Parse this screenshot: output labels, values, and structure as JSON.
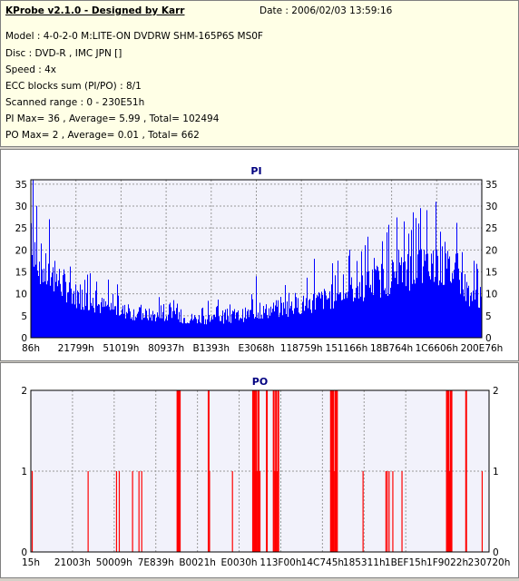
{
  "header": {
    "title": "KProbe v2.1.0 - Designed by Karr",
    "date": "Date : 2006/02/03 13:59:16",
    "lines": [
      "Model : 4-0-2-0 M:LITE-ON DVDRW SHM-165P6S MS0F",
      "Disc : DVD-R , IMC JPN []",
      "Speed : 4x",
      "ECC blocks sum (PI/PO) : 8/1",
      "Scanned range : 0 - 230E51h",
      "PI Max= 36 , Average= 5.99 , Total= 102494",
      "PO Max= 2 , Average= 0.01 , Total= 662"
    ]
  },
  "colors": {
    "pi_fill": "#0000ff",
    "po_bar": "#ff0000",
    "plot_bg": "#f2f2fb",
    "panel_bg": "#ffffff"
  },
  "chart_data": [
    {
      "type": "area",
      "title": "PI",
      "ylim": [
        0,
        36
      ],
      "yticks": [
        0,
        5,
        10,
        15,
        20,
        25,
        30,
        35
      ],
      "xticks": [
        "86h",
        "21799h",
        "51019h",
        "80937h",
        "B1393h",
        "E3068h",
        "118759h",
        "151166h",
        "18B764h",
        "1C6606h",
        "200E76h"
      ],
      "grid": true,
      "profile": [
        [
          0.0,
          30
        ],
        [
          0.01,
          22
        ],
        [
          0.03,
          17
        ],
        [
          0.06,
          15
        ],
        [
          0.1,
          11
        ],
        [
          0.15,
          8.5
        ],
        [
          0.2,
          7
        ],
        [
          0.25,
          6
        ],
        [
          0.3,
          5.5
        ],
        [
          0.35,
          5
        ],
        [
          0.4,
          5
        ],
        [
          0.45,
          5.5
        ],
        [
          0.5,
          6.5
        ],
        [
          0.55,
          7.5
        ],
        [
          0.6,
          8.5
        ],
        [
          0.65,
          10
        ],
        [
          0.7,
          12
        ],
        [
          0.75,
          14
        ],
        [
          0.8,
          16
        ],
        [
          0.85,
          18
        ],
        [
          0.9,
          19
        ],
        [
          0.94,
          17
        ],
        [
          0.97,
          12
        ],
        [
          1.0,
          10
        ]
      ],
      "peaks": [
        [
          0.004,
          36
        ],
        [
          0.9,
          31
        ],
        [
          0.5,
          14
        ],
        [
          0.63,
          18
        ],
        [
          0.79,
          24
        ],
        [
          0.86,
          26
        ]
      ]
    },
    {
      "type": "bar",
      "title": "PO",
      "ylim": [
        0,
        2
      ],
      "yticks": [
        0,
        1,
        2
      ],
      "xticks": [
        "15h",
        "21003h",
        "50009h",
        "7E839h",
        "B0021h",
        "E0030h",
        "113F00h",
        "14C745h",
        "185311h",
        "1BEF15h",
        "1F9022h",
        "230720h"
      ],
      "grid": true,
      "events": [
        [
          0.003,
          1
        ],
        [
          0.125,
          1
        ],
        [
          0.187,
          1
        ],
        [
          0.193,
          1
        ],
        [
          0.222,
          1
        ],
        [
          0.236,
          1
        ],
        [
          0.242,
          1
        ],
        [
          0.32,
          2
        ],
        [
          0.322,
          2
        ],
        [
          0.325,
          2
        ],
        [
          0.388,
          2
        ],
        [
          0.39,
          1
        ],
        [
          0.44,
          1
        ],
        [
          0.485,
          2
        ],
        [
          0.488,
          2
        ],
        [
          0.49,
          1
        ],
        [
          0.492,
          2
        ],
        [
          0.495,
          1
        ],
        [
          0.497,
          2
        ],
        [
          0.5,
          1
        ],
        [
          0.515,
          2
        ],
        [
          0.53,
          2
        ],
        [
          0.533,
          1
        ],
        [
          0.535,
          2
        ],
        [
          0.538,
          1
        ],
        [
          0.54,
          2
        ],
        [
          0.655,
          2
        ],
        [
          0.658,
          2
        ],
        [
          0.66,
          2
        ],
        [
          0.662,
          1
        ],
        [
          0.665,
          2
        ],
        [
          0.668,
          2
        ],
        [
          0.725,
          1
        ],
        [
          0.775,
          1
        ],
        [
          0.778,
          1
        ],
        [
          0.782,
          1
        ],
        [
          0.79,
          1
        ],
        [
          0.81,
          1
        ],
        [
          0.908,
          2
        ],
        [
          0.911,
          2
        ],
        [
          0.914,
          1
        ],
        [
          0.916,
          2
        ],
        [
          0.918,
          2
        ],
        [
          0.95,
          2
        ],
        [
          0.985,
          1
        ]
      ]
    }
  ]
}
